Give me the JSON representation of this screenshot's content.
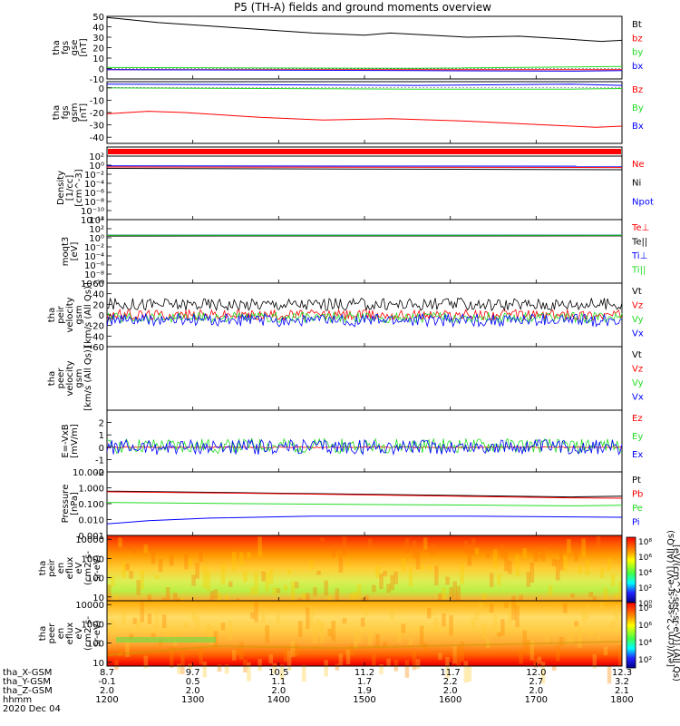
{
  "title": "P5 (TH-A) fields and ground moments overview",
  "colors": {
    "black": "#000000",
    "red": "#ff0000",
    "green": "#22dd22",
    "blue": "#0000ff"
  },
  "time_axis": {
    "hhmm": [
      "1200",
      "1300",
      "1400",
      "1500",
      "1600",
      "1700",
      "1800"
    ],
    "x_gsm": [
      "8.7",
      "9.7",
      "10.5",
      "11.2",
      "11.7",
      "12.0",
      "12.3"
    ],
    "y_gsm": [
      "-0.1",
      "0.5",
      "1.1",
      "1.7",
      "2.2",
      "2.7",
      "3.2"
    ],
    "z_gsm": [
      "2.0",
      "2.0",
      "2.0",
      "1.9",
      "2.0",
      "2.0",
      "2.1"
    ],
    "row_labels": [
      "tha_X-GSM",
      "tha_Y-GSM",
      "tha_Z-GSM",
      "hhmm"
    ],
    "date": "2020 Dec 04"
  },
  "colorbar": {
    "label": "[eV/(cm^2-sec-sr-eV)] (All Qs)",
    "label2": "[eV/(cm^2-sec-sr-eV)] (All Qs)",
    "ticks_top": [
      "10⁸",
      "10⁶",
      "10⁴",
      "10²",
      "10⁰"
    ],
    "ticks_bottom": [
      "10⁸",
      "10⁶",
      "10⁴",
      "10²"
    ]
  },
  "chart_data": [
    {
      "type": "line",
      "name": "fgs_gse",
      "ylabel": [
        "tha",
        "fgs",
        "gse",
        "[nT]"
      ],
      "ylim": [
        -10,
        50
      ],
      "yticks": [
        "50",
        "40",
        "30",
        "20",
        "10",
        "0",
        "-10"
      ],
      "legend": [
        "Bt",
        "bz",
        "by",
        "bx"
      ],
      "series": [
        {
          "name": "Bt",
          "x": [
            0,
            0.1,
            0.25,
            0.4,
            0.5,
            0.55,
            0.7,
            0.8,
            0.9,
            0.96,
            1
          ],
          "values": [
            49,
            44,
            39,
            34,
            32,
            34,
            30,
            31,
            28,
            26,
            27
          ]
        },
        {
          "name": "bz",
          "x": [
            0,
            0.5,
            1
          ],
          "values": [
            -1,
            -1,
            -1
          ]
        },
        {
          "name": "by",
          "x": [
            0,
            0.3,
            0.6,
            0.9,
            1
          ],
          "values": [
            1,
            0.5,
            0.2,
            1.5,
            2
          ]
        },
        {
          "name": "bx",
          "x": [
            0,
            0.3,
            0.6,
            0.9,
            1
          ],
          "values": [
            -1,
            -1.5,
            -2,
            -2.5,
            -2
          ]
        }
      ]
    },
    {
      "type": "line",
      "name": "fgs_gsm",
      "ylabel": [
        "tha",
        "fgs",
        "gsm",
        "[nT]"
      ],
      "ylim": [
        -45,
        5
      ],
      "yticks": [
        "0",
        "-10",
        "-20",
        "-30",
        "-40"
      ],
      "legend": [
        "Bz",
        "By",
        "Bx"
      ],
      "series": [
        {
          "name": "Bz",
          "x": [
            0,
            0.08,
            0.15,
            0.3,
            0.42,
            0.55,
            0.7,
            0.85,
            0.95,
            1
          ],
          "values": [
            -21,
            -19,
            -20,
            -24,
            -26,
            -25,
            -27,
            -30,
            -32,
            -31
          ]
        },
        {
          "name": "By",
          "x": [
            0,
            0.3,
            0.6,
            0.9,
            1
          ],
          "values": [
            0,
            -0.5,
            -1,
            -1,
            -0.5
          ]
        },
        {
          "name": "Bx",
          "x": [
            0,
            0.3,
            0.6,
            0.9,
            1
          ],
          "values": [
            3,
            2.5,
            2,
            3,
            2
          ]
        }
      ]
    },
    {
      "type": "line",
      "name": "density",
      "ylabel": [
        "Density",
        "[1/cc]",
        "[cm^-3]"
      ],
      "ylog": true,
      "ylim": [
        -12,
        2
      ],
      "yticks": [
        "10²",
        "10⁰",
        "10⁻²",
        "10⁻⁴",
        "10⁻⁶",
        "10⁻⁸",
        "10⁻¹⁰",
        "10⁻¹²"
      ],
      "legend": [
        "Ne",
        "Ni",
        "Npot"
      ],
      "series": [
        {
          "name": "Ne",
          "x": [
            0,
            1
          ],
          "values": [
            0.4,
            0.3
          ]
        },
        {
          "name": "Ni",
          "x": [
            0,
            1
          ],
          "values": [
            0.2,
            0.1
          ]
        },
        {
          "name": "Npot",
          "x": [
            0,
            1
          ],
          "values": [
            0.7,
            0.6
          ]
        }
      ]
    },
    {
      "type": "line",
      "name": "temperature",
      "ylabel": [
        "moqt3",
        "[eV]"
      ],
      "ylog": true,
      "ylim": [
        -10,
        4
      ],
      "yticks": [
        "10⁴",
        "10²",
        "10⁰",
        "10⁻²",
        "10⁻⁴",
        "10⁻⁶",
        "10⁻⁸",
        "10⁻¹⁰"
      ],
      "legend": [
        "Te⊥",
        "Te||",
        "Ti⊥",
        "Ti||"
      ],
      "series": [
        {
          "name": "Te⊥",
          "x": [
            0,
            1
          ],
          "values": [
            2.5,
            2.7
          ]
        },
        {
          "name": "Te||",
          "x": [
            0,
            1
          ],
          "values": [
            2.4,
            2.6
          ]
        },
        {
          "name": "Ti⊥",
          "x": [
            0,
            1
          ],
          "values": [
            3.8,
            3.8
          ]
        },
        {
          "name": "Ti||",
          "x": [
            0,
            1
          ],
          "values": [
            3.6,
            3.7
          ]
        }
      ]
    },
    {
      "type": "line",
      "name": "peir_velocity",
      "ylabel": [
        "tha",
        "peir",
        "velocity",
        "gsm",
        "[km/s (All Qs)]"
      ],
      "ylim": [
        -60,
        60
      ],
      "yticks": [
        "60",
        "40",
        "20",
        "0",
        "-20",
        "-40",
        "-60"
      ],
      "legend": [
        "Vt",
        "Vz",
        "Vy",
        "Vx"
      ],
      "series": [
        {
          "name": "Vt",
          "x": [
            0,
            1
          ],
          "values": [
            20,
            20
          ]
        },
        {
          "name": "Vz",
          "x": [
            0,
            1
          ],
          "values": [
            0,
            0
          ]
        },
        {
          "name": "Vy",
          "x": [
            0,
            1
          ],
          "values": [
            -5,
            -5
          ]
        },
        {
          "name": "Vx",
          "x": [
            0,
            1
          ],
          "values": [
            -10,
            -10
          ]
        }
      ]
    },
    {
      "type": "line",
      "name": "peer_velocity",
      "ylabel": [
        "tha",
        "peer",
        "velocity",
        "gsm",
        "[km/s (All Qs)]"
      ],
      "ylim": [
        -60,
        60
      ],
      "yticks": [],
      "legend": [
        "Vt",
        "Vz",
        "Vy",
        "Vx"
      ],
      "series": []
    },
    {
      "type": "line",
      "name": "efield",
      "ylabel": [
        "E=-VxB",
        "[mV/m]"
      ],
      "ylim": [
        -2,
        3
      ],
      "yticks": [
        "2",
        "1",
        "0",
        "-1",
        "-2"
      ],
      "legend": [
        "Ez",
        "Ey",
        "Ex"
      ],
      "series": [
        {
          "name": "Ez",
          "x": [
            0,
            1
          ],
          "values": [
            0,
            0
          ]
        },
        {
          "name": "Ey",
          "x": [
            0,
            1
          ],
          "values": [
            0.1,
            0.1
          ]
        },
        {
          "name": "Ex",
          "x": [
            0,
            1
          ],
          "values": [
            0,
            0
          ]
        }
      ]
    },
    {
      "type": "line",
      "name": "pressure",
      "ylabel": [
        "Pressure",
        "[nPa]"
      ],
      "ylog": true,
      "ylim": [
        -3,
        1.3
      ],
      "yticks": [
        "10.000",
        "1.000",
        "0.100",
        "0.010",
        "0.001"
      ],
      "legend": [
        "Pt",
        "Pb",
        "Pe",
        "Pi"
      ],
      "series": [
        {
          "name": "Pt",
          "x": [
            0,
            0.3,
            0.6,
            0.9,
            1
          ],
          "values": [
            1.0,
            0.75,
            0.55,
            0.4,
            0.45
          ]
        },
        {
          "name": "Pb",
          "x": [
            0,
            0.3,
            0.6,
            0.9,
            1
          ],
          "values": [
            0.9,
            0.7,
            0.5,
            0.35,
            0.33
          ]
        },
        {
          "name": "Pe",
          "x": [
            0,
            0.3,
            0.6,
            0.9,
            1
          ],
          "values": [
            0.17,
            0.14,
            0.12,
            0.1,
            0.11
          ]
        },
        {
          "name": "Pi",
          "x": [
            0,
            0.08,
            0.2,
            0.4,
            0.7,
            1
          ],
          "values": [
            0.006,
            0.01,
            0.015,
            0.02,
            0.02,
            0.017
          ]
        }
      ]
    },
    {
      "type": "heatmap",
      "name": "peir_en_eflux",
      "ylabel": [
        "tha",
        "peir",
        "en",
        "eflux",
        "eV",
        "(cm2-s-",
        "sr-eV)"
      ],
      "ylog": true,
      "ylim": [
        0.8,
        4.2
      ],
      "yticks": [
        "10000",
        "1000",
        "100",
        "10"
      ]
    },
    {
      "type": "heatmap",
      "name": "peer_en_eflux",
      "ylabel": [
        "tha",
        "peer",
        "en",
        "eflux",
        "eV",
        "(cm2-s-",
        "sr-eV)"
      ],
      "ylog": true,
      "ylim": [
        0.8,
        4.2
      ],
      "yticks": [
        "10000",
        "1000",
        "100",
        "10"
      ]
    }
  ]
}
